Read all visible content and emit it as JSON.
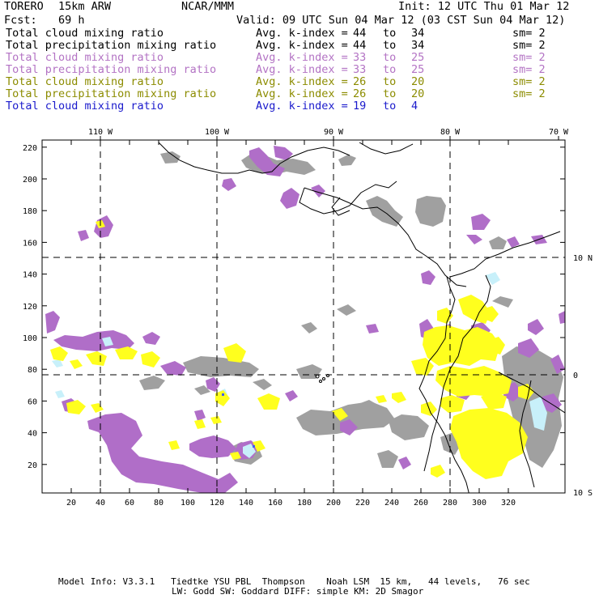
{
  "header": {
    "model": "TORERO",
    "resolution": "15km ARW",
    "org": "NCAR/MMM",
    "init": "Init: 12 UTC Thu 01 Mar 12",
    "fcst_label": "Fcst:",
    "fcst_value": "69 h",
    "valid": "Valid: 09 UTC Sun 04 Mar 12 (03 CST Sun 04 Mar 12)"
  },
  "legend": [
    {
      "field": "Total cloud mixing ratio",
      "kindex": "Avg. k-index =",
      "hi": "44",
      "to": "to",
      "lo": "34",
      "sm": "sm= 2",
      "color": "#000000"
    },
    {
      "field": "Total precipitation mixing ratio",
      "kindex": "Avg. k-index =",
      "hi": "44",
      "to": "to",
      "lo": "34",
      "sm": "sm= 2",
      "color": "#000000"
    },
    {
      "field": "Total cloud mixing ratio",
      "kindex": "Avg. k-index =",
      "hi": "33",
      "to": "to",
      "lo": "25",
      "sm": "sm= 2",
      "color": "#b373c4"
    },
    {
      "field": "Total precipitation mixing ratio",
      "kindex": "Avg. k-index =",
      "hi": "33",
      "to": "to",
      "lo": "25",
      "sm": "sm= 2",
      "color": "#b373c4"
    },
    {
      "field": "Total cloud mixing ratio",
      "kindex": "Avg. k-index =",
      "hi": "26",
      "to": "to",
      "lo": "20",
      "sm": "sm= 2",
      "color": "#8c8c00"
    },
    {
      "field": "Total precipitation mixing ratio",
      "kindex": "Avg. k-index =",
      "hi": "26",
      "to": "to",
      "lo": "20",
      "sm": "sm= 2",
      "color": "#8c8c00"
    },
    {
      "field": "Total cloud mixing ratio",
      "kindex": "Avg. k-index =",
      "hi": "19",
      "to": "to",
      "lo": "4",
      "sm": "",
      "color": "#1a1acc"
    }
  ],
  "map": {
    "lon_labels": [
      "110 W",
      "100 W",
      "90 W",
      "80 W",
      "70 W"
    ],
    "lat_labels": [
      "10 N",
      "0",
      "10 S"
    ],
    "y_ticks": [
      "220",
      "200",
      "180",
      "160",
      "140",
      "120",
      "100",
      "80",
      "60",
      "40",
      "20"
    ],
    "x_ticks": [
      "20",
      "40",
      "60",
      "80",
      "100",
      "120",
      "140",
      "160",
      "180",
      "200",
      "220",
      "240",
      "260",
      "280",
      "300",
      "320"
    ],
    "colors": {
      "gray": "#a0a0a0",
      "purple": "#b06ec8",
      "yellow": "#ffff1e",
      "lightblue": "#c8f0fa"
    }
  },
  "footer": {
    "line1": "Model Info: V3.3.1   Tiedtke YSU PBL  Thompson    Noah LSM  15 km,   44 levels,   76 sec",
    "line2": "LW: Godd SW: Goddard DIFF: simple KM: 2D Smagor"
  }
}
